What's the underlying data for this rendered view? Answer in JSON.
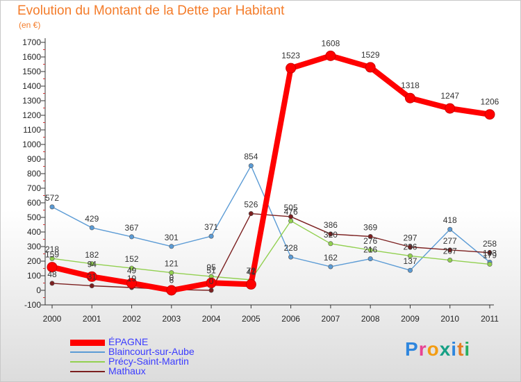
{
  "chart_data": {
    "type": "line",
    "title": "Evolution du Montant de la Dette par Habitant",
    "ylabel": "(en €)",
    "x": [
      "2000",
      "2001",
      "2002",
      "2003",
      "2004",
      "2005",
      "2006",
      "2007",
      "2008",
      "2009",
      "2010",
      "2011"
    ],
    "ylim": [
      -100,
      1700
    ],
    "yticks": [
      -100,
      0,
      100,
      200,
      300,
      400,
      500,
      600,
      700,
      800,
      900,
      1000,
      1100,
      1200,
      1300,
      1400,
      1500,
      1600,
      1700
    ],
    "grid": false,
    "legend_position": "bottom-left",
    "series": [
      {
        "name": "ÉPAGNE",
        "color": "#ff0000",
        "values": [
          159,
          94,
          49,
          0,
          51,
          41,
          1523,
          1608,
          1529,
          1318,
          1247,
          1206
        ]
      },
      {
        "name": "Blaincourt-sur-Aube",
        "color": "#5b9bd5",
        "values": [
          572,
          429,
          367,
          301,
          371,
          854,
          228,
          162,
          216,
          137,
          418,
          193
        ]
      },
      {
        "name": "Précy-Saint-Martin",
        "color": "#92d050",
        "values": [
          218,
          182,
          152,
          121,
          95,
          72,
          476,
          320,
          276,
          236,
          207,
          179
        ]
      },
      {
        "name": "Mathaux",
        "color": "#7b1f1f",
        "values": [
          48,
          31,
          19,
          6,
          0,
          526,
          505,
          386,
          369,
          297,
          277,
          258
        ]
      }
    ]
  },
  "logo": {
    "letters": [
      "P",
      "r",
      "o",
      "x",
      "i",
      "t",
      "i"
    ],
    "colors": [
      "#2e86de",
      "#e84393",
      "#f39c12",
      "#16a085",
      "#2e86de",
      "#e67e22",
      "#27ae60"
    ]
  }
}
